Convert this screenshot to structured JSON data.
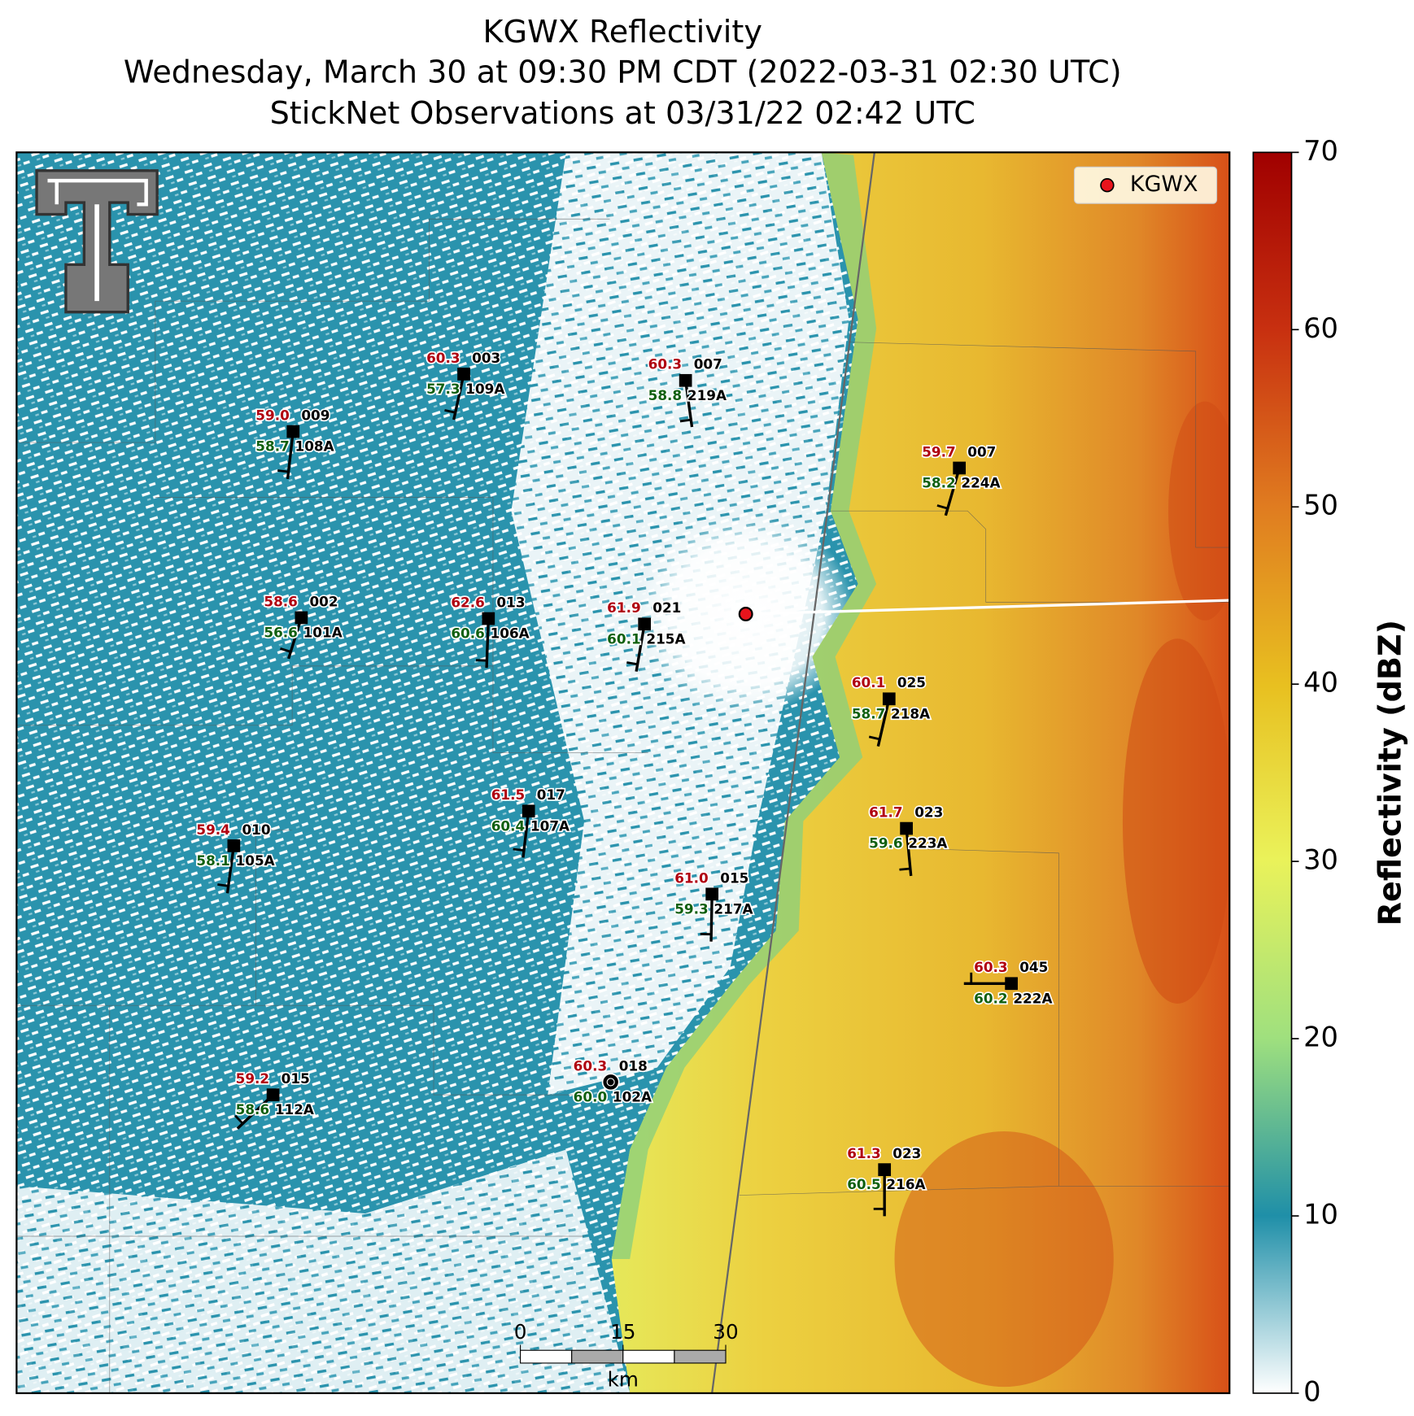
{
  "title": {
    "lines": [
      "KGWX Reflectivity",
      "Wednesday, March 30 at 09:30 PM CDT (2022-03-31 02:30 UTC)",
      "StickNet Observations at 03/31/22 02:42 UTC"
    ]
  },
  "legend": {
    "label": "KGWX"
  },
  "stations": [
    {
      "temperature": "59.0",
      "dewpoint": "58.7",
      "code": "009",
      "id": "108A"
    },
    {
      "temperature": "60.3",
      "dewpoint": "57.3",
      "code": "003",
      "id": "109A"
    },
    {
      "temperature": "60.3",
      "dewpoint": "58.8",
      "code": "007",
      "id": "219A"
    },
    {
      "temperature": "59.7",
      "dewpoint": "58.2",
      "code": "007",
      "id": "224A"
    },
    {
      "temperature": "58.6",
      "dewpoint": "56.6",
      "code": "002",
      "id": "101A"
    },
    {
      "temperature": "62.6",
      "dewpoint": "60.6",
      "code": "013",
      "id": "106A"
    },
    {
      "temperature": "61.9",
      "dewpoint": "60.1",
      "code": "021",
      "id": "215A"
    },
    {
      "temperature": "60.1",
      "dewpoint": "58.7",
      "code": "025",
      "id": "218A"
    },
    {
      "temperature": "59.4",
      "dewpoint": "58.1",
      "code": "010",
      "id": "105A"
    },
    {
      "temperature": "61.5",
      "dewpoint": "60.4",
      "code": "017",
      "id": "107A"
    },
    {
      "temperature": "61.7",
      "dewpoint": "59.6",
      "code": "023",
      "id": "223A"
    },
    {
      "temperature": "61.0",
      "dewpoint": "59.3",
      "code": "015",
      "id": "217A"
    },
    {
      "temperature": "60.3",
      "dewpoint": "60.2",
      "code": "045",
      "id": "222A"
    },
    {
      "temperature": "60.3",
      "dewpoint": "60.0",
      "code": "018",
      "id": "102A"
    },
    {
      "temperature": "59.2",
      "dewpoint": "58.6",
      "code": "015",
      "id": "112A"
    },
    {
      "temperature": "61.3",
      "dewpoint": "60.5",
      "code": "023",
      "id": "216A"
    }
  ],
  "scale_bar": {
    "ticks": [
      0,
      15,
      30
    ],
    "unit": "km"
  },
  "colorbar": {
    "label": "Reflectivity (dBZ)",
    "lim": [
      0,
      70
    ],
    "ticks": [
      0,
      10,
      20,
      30,
      40,
      50,
      60,
      70
    ]
  }
}
